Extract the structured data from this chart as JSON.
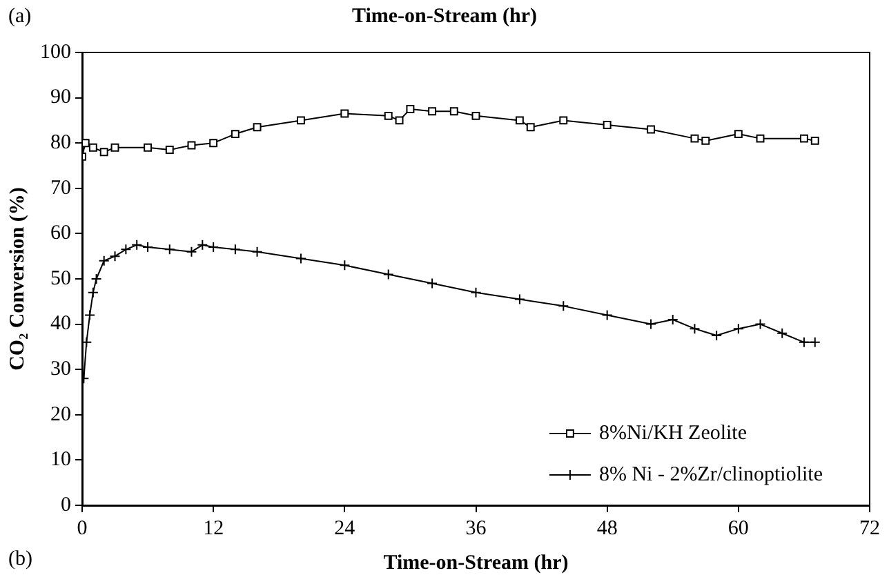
{
  "chart_data": {
    "type": "line",
    "title": "Time-on-Stream (hr)",
    "xlabel": "Time-on-Stream (hr)",
    "ylabel": "CO₂ Conversion (%)",
    "annotations": [
      "(a)",
      "(b)"
    ],
    "xlim": [
      0,
      72
    ],
    "xticks": [
      0,
      12,
      24,
      36,
      48,
      60,
      72
    ],
    "ylim": [
      0,
      100
    ],
    "yticks": [
      0,
      10,
      20,
      30,
      40,
      50,
      60,
      70,
      80,
      90,
      100
    ],
    "grid": false,
    "legend": "bottom right",
    "line_style": "solid",
    "series": [
      {
        "name": "8%Ni/KH Zeolite",
        "color": "#000000",
        "marker": "square",
        "x": [
          0,
          0.3,
          1,
          2,
          3,
          6,
          8,
          10,
          12,
          14,
          16,
          20,
          24,
          28,
          29,
          30,
          32,
          34,
          36,
          40,
          41,
          44,
          48,
          52,
          56,
          57,
          60,
          62,
          66,
          67
        ],
        "values": [
          77,
          80,
          79,
          78,
          79,
          79,
          78.5,
          79.5,
          80,
          82,
          83.5,
          85,
          86.5,
          86,
          85,
          87.5,
          87,
          87,
          86,
          85,
          83.5,
          85,
          84,
          83,
          81,
          80.5,
          82,
          81,
          81,
          80.5
        ]
      },
      {
        "name": "8% Ni - 2%Zr/clinoptiolite",
        "color": "#000000",
        "marker": "cross",
        "x": [
          0.15,
          0.4,
          0.7,
          1,
          1.3,
          2,
          3,
          4,
          5,
          6,
          8,
          10,
          11,
          12,
          14,
          16,
          20,
          24,
          28,
          32,
          36,
          40,
          44,
          48,
          52,
          54,
          56,
          58,
          60,
          62,
          64,
          66,
          67
        ],
        "values": [
          28,
          36,
          42,
          47,
          50,
          54,
          55,
          56.5,
          57.5,
          57,
          56.5,
          56,
          57.5,
          57,
          56.5,
          56,
          54.5,
          53,
          51,
          49,
          47,
          45.5,
          44,
          42,
          40,
          41,
          39,
          37.5,
          39,
          40,
          38,
          36,
          36
        ]
      }
    ]
  }
}
